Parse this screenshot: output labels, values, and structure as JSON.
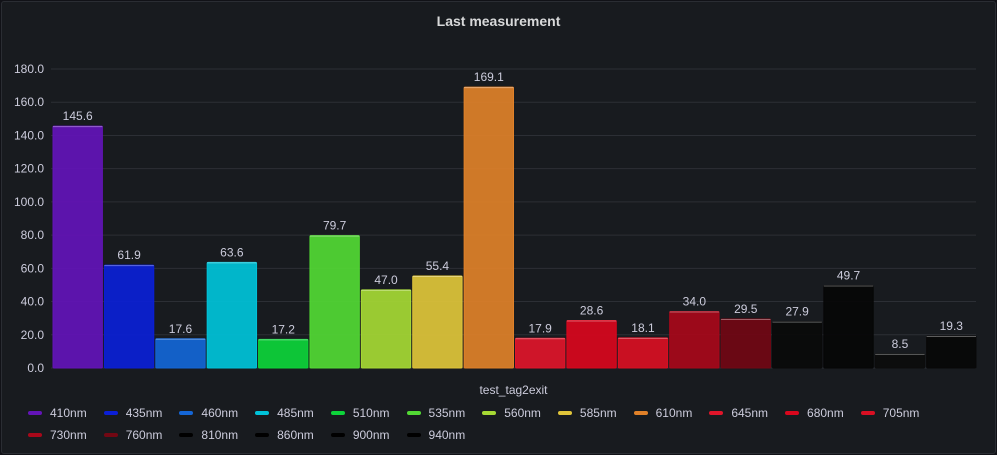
{
  "panel": {
    "title": "Last measurement"
  },
  "chart_data": {
    "type": "bar",
    "title": "Last measurement",
    "xlabel": "test_tag2exit",
    "ylabel": "",
    "ylim": [
      0,
      180
    ],
    "yticks": [
      "0.0",
      "20.0",
      "40.0",
      "60.0",
      "80.0",
      "100.0",
      "120.0",
      "140.0",
      "160.0",
      "180.0"
    ],
    "grid": true,
    "legend_position": "bottom",
    "series": [
      {
        "name": "410nm",
        "value": 145.6,
        "label": "145.6",
        "color": "#6314b8"
      },
      {
        "name": "435nm",
        "value": 61.9,
        "label": "61.9",
        "color": "#0b1fd6"
      },
      {
        "name": "460nm",
        "value": 17.6,
        "label": "17.6",
        "color": "#1466d6"
      },
      {
        "name": "485nm",
        "value": 63.6,
        "label": "63.6",
        "color": "#00c3d9"
      },
      {
        "name": "510nm",
        "value": 17.2,
        "label": "17.2",
        "color": "#0dd43a"
      },
      {
        "name": "535nm",
        "value": 79.7,
        "label": "79.7",
        "color": "#52d934"
      },
      {
        "name": "560nm",
        "value": 47.0,
        "label": "47.0",
        "color": "#a6d934"
      },
      {
        "name": "585nm",
        "value": 55.4,
        "label": "55.4",
        "color": "#e0c53a"
      },
      {
        "name": "610nm",
        "value": 169.1,
        "label": "169.1",
        "color": "#e08129"
      },
      {
        "name": "645nm",
        "value": 17.9,
        "label": "17.9",
        "color": "#e0152a"
      },
      {
        "name": "680nm",
        "value": 28.6,
        "label": "28.6",
        "color": "#d9071d"
      },
      {
        "name": "705nm",
        "value": 18.1,
        "label": "18.1",
        "color": "#d90f23"
      },
      {
        "name": "730nm",
        "value": 34.0,
        "label": "34.0",
        "color": "#a8081a"
      },
      {
        "name": "760nm",
        "value": 29.5,
        "label": "29.5",
        "color": "#720713"
      },
      {
        "name": "810nm",
        "value": 27.9,
        "label": "27.9",
        "color": "#0a0a0a"
      },
      {
        "name": "860nm",
        "value": 49.7,
        "label": "49.7",
        "color": "#060606"
      },
      {
        "name": "900nm",
        "value": 8.5,
        "label": "8.5",
        "color": "#0c0c0c"
      },
      {
        "name": "940nm",
        "value": 19.3,
        "label": "19.3",
        "color": "#080808"
      }
    ]
  }
}
